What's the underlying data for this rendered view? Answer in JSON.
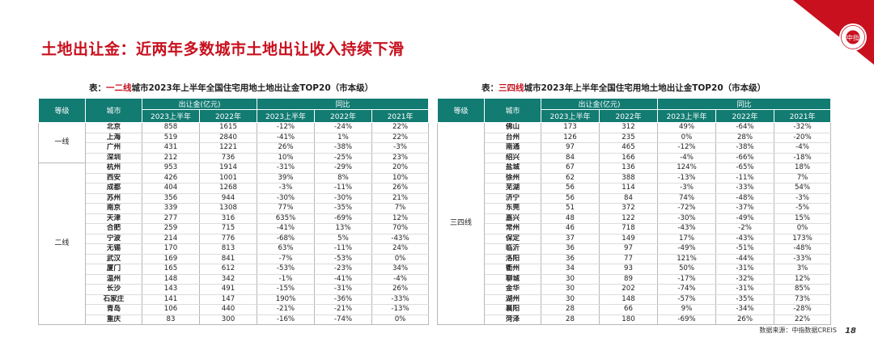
{
  "title": "土地出让金：近两年多数城市土地出让收入持续下滑",
  "logo": {
    "text": "中指",
    "ring_text": "CHINA INDEX ACADEMY"
  },
  "left": {
    "caption_prefix": "表：",
    "caption_highlight": "一二线",
    "caption_rest": "城市2023年上半年全国住宅用地土地出让金TOP20（市本级）",
    "headers": {
      "level": "等级",
      "city": "城市",
      "group1": "出让金(亿元)",
      "group2": "同比",
      "h2023": "2023上半年",
      "h2022": "2022年",
      "y2023": "2023上半年",
      "y2022": "2022年",
      "y2021": "2021年"
    },
    "groups": [
      {
        "level": "一线",
        "rows": [
          {
            "city": "北京",
            "v2023": "858",
            "v2022": "1615",
            "y2023": "-12%",
            "y2022": "-24%",
            "y2021": "22%"
          },
          {
            "city": "上海",
            "v2023": "519",
            "v2022": "2840",
            "y2023": "-41%",
            "y2022": "1%",
            "y2021": "22%"
          },
          {
            "city": "广州",
            "v2023": "431",
            "v2022": "1221",
            "y2023": "26%",
            "y2022": "-38%",
            "y2021": "-3%"
          },
          {
            "city": "深圳",
            "v2023": "212",
            "v2022": "736",
            "y2023": "10%",
            "y2022": "-25%",
            "y2021": "23%"
          }
        ]
      },
      {
        "level": "二线",
        "rows": [
          {
            "city": "杭州",
            "v2023": "953",
            "v2022": "1914",
            "y2023": "-31%",
            "y2022": "-29%",
            "y2021": "20%"
          },
          {
            "city": "西安",
            "v2023": "426",
            "v2022": "1001",
            "y2023": "39%",
            "y2022": "8%",
            "y2021": "10%"
          },
          {
            "city": "成都",
            "v2023": "404",
            "v2022": "1268",
            "y2023": "-3%",
            "y2022": "-11%",
            "y2021": "26%"
          },
          {
            "city": "苏州",
            "v2023": "356",
            "v2022": "944",
            "y2023": "-30%",
            "y2022": "-30%",
            "y2021": "21%"
          },
          {
            "city": "南京",
            "v2023": "339",
            "v2022": "1308",
            "y2023": "77%",
            "y2022": "-35%",
            "y2021": "7%"
          },
          {
            "city": "天津",
            "v2023": "277",
            "v2022": "316",
            "y2023": "635%",
            "y2022": "-69%",
            "y2021": "12%"
          },
          {
            "city": "合肥",
            "v2023": "259",
            "v2022": "715",
            "y2023": "-41%",
            "y2022": "13%",
            "y2021": "70%"
          },
          {
            "city": "宁波",
            "v2023": "214",
            "v2022": "776",
            "y2023": "-68%",
            "y2022": "5%",
            "y2021": "-43%"
          },
          {
            "city": "无锡",
            "v2023": "170",
            "v2022": "813",
            "y2023": "63%",
            "y2022": "-11%",
            "y2021": "24%"
          },
          {
            "city": "武汉",
            "v2023": "169",
            "v2022": "841",
            "y2023": "-7%",
            "y2022": "-53%",
            "y2021": "0%"
          },
          {
            "city": "厦门",
            "v2023": "165",
            "v2022": "612",
            "y2023": "-53%",
            "y2022": "-23%",
            "y2021": "34%"
          },
          {
            "city": "温州",
            "v2023": "148",
            "v2022": "342",
            "y2023": "-1%",
            "y2022": "-41%",
            "y2021": "-4%"
          },
          {
            "city": "长沙",
            "v2023": "143",
            "v2022": "491",
            "y2023": "-15%",
            "y2022": "-31%",
            "y2021": "26%"
          },
          {
            "city": "石家庄",
            "v2023": "141",
            "v2022": "147",
            "y2023": "190%",
            "y2022": "-36%",
            "y2021": "-33%"
          },
          {
            "city": "青岛",
            "v2023": "106",
            "v2022": "440",
            "y2023": "-21%",
            "y2022": "-21%",
            "y2021": "-13%"
          },
          {
            "city": "重庆",
            "v2023": "83",
            "v2022": "300",
            "y2023": "-16%",
            "y2022": "-74%",
            "y2021": "0%"
          }
        ]
      }
    ]
  },
  "right": {
    "caption_prefix": "表：",
    "caption_highlight": "三四线",
    "caption_rest": "城市2023年上半年全国住宅用地土地出让金TOP20（市本级）",
    "headers": {
      "level": "等级",
      "city": "城市",
      "group1": "出让金(亿元)",
      "group2": "同比",
      "h2023": "2023上半年",
      "h2022": "2022年",
      "y2023": "2023上半年",
      "y2022": "2022年",
      "y2021": "2021年"
    },
    "groups": [
      {
        "level": "三四线",
        "rows": [
          {
            "city": "佛山",
            "v2023": "173",
            "v2022": "312",
            "y2023": "49%",
            "y2022": "-64%",
            "y2021": "-32%"
          },
          {
            "city": "台州",
            "v2023": "126",
            "v2022": "235",
            "y2023": "0%",
            "y2022": "28%",
            "y2021": "-20%"
          },
          {
            "city": "南通",
            "v2023": "97",
            "v2022": "465",
            "y2023": "-12%",
            "y2022": "-38%",
            "y2021": "-4%"
          },
          {
            "city": "绍兴",
            "v2023": "84",
            "v2022": "166",
            "y2023": "-4%",
            "y2022": "-66%",
            "y2021": "-18%"
          },
          {
            "city": "盐城",
            "v2023": "67",
            "v2022": "136",
            "y2023": "124%",
            "y2022": "-65%",
            "y2021": "18%"
          },
          {
            "city": "徐州",
            "v2023": "62",
            "v2022": "388",
            "y2023": "-13%",
            "y2022": "-11%",
            "y2021": "7%"
          },
          {
            "city": "芜湖",
            "v2023": "56",
            "v2022": "114",
            "y2023": "-3%",
            "y2022": "-33%",
            "y2021": "54%"
          },
          {
            "city": "济宁",
            "v2023": "56",
            "v2022": "84",
            "y2023": "74%",
            "y2022": "-48%",
            "y2021": "-3%"
          },
          {
            "city": "东莞",
            "v2023": "51",
            "v2022": "372",
            "y2023": "-72%",
            "y2022": "-37%",
            "y2021": "-5%"
          },
          {
            "city": "嘉兴",
            "v2023": "48",
            "v2022": "122",
            "y2023": "-30%",
            "y2022": "-49%",
            "y2021": "15%"
          },
          {
            "city": "常州",
            "v2023": "46",
            "v2022": "718",
            "y2023": "-43%",
            "y2022": "-2%",
            "y2021": "0%"
          },
          {
            "city": "保定",
            "v2023": "37",
            "v2022": "149",
            "y2023": "17%",
            "y2022": "-43%",
            "y2021": "173%"
          },
          {
            "city": "临沂",
            "v2023": "36",
            "v2022": "97",
            "y2023": "-49%",
            "y2022": "-51%",
            "y2021": "-48%"
          },
          {
            "city": "洛阳",
            "v2023": "36",
            "v2022": "77",
            "y2023": "121%",
            "y2022": "-44%",
            "y2021": "-33%"
          },
          {
            "city": "衢州",
            "v2023": "34",
            "v2022": "93",
            "y2023": "50%",
            "y2022": "-31%",
            "y2021": "3%"
          },
          {
            "city": "聊城",
            "v2023": "30",
            "v2022": "89",
            "y2023": "-17%",
            "y2022": "-32%",
            "y2021": "12%"
          },
          {
            "city": "金华",
            "v2023": "30",
            "v2022": "202",
            "y2023": "-74%",
            "y2022": "-31%",
            "y2021": "85%"
          },
          {
            "city": "湖州",
            "v2023": "30",
            "v2022": "148",
            "y2023": "-57%",
            "y2022": "-35%",
            "y2021": "73%"
          },
          {
            "city": "襄阳",
            "v2023": "28",
            "v2022": "66",
            "y2023": "9%",
            "y2022": "-34%",
            "y2021": "-28%"
          },
          {
            "city": "菏泽",
            "v2023": "28",
            "v2022": "180",
            "y2023": "-69%",
            "y2022": "26%",
            "y2021": "22%"
          }
        ]
      }
    ]
  },
  "footer": {
    "source": "数据来源：中指数据CREIS",
    "page": "18"
  }
}
